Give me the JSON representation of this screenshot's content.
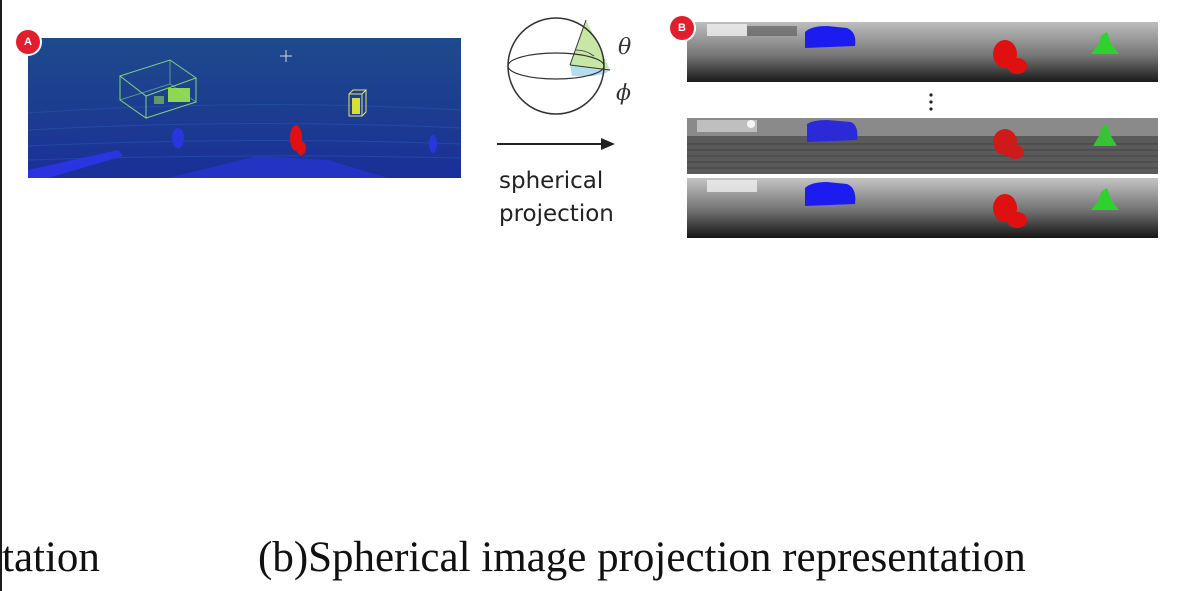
{
  "panel_a": {
    "badge": "A"
  },
  "panel_b": {
    "badge": "B"
  },
  "projection": {
    "theta_symbol": "θ",
    "phi_symbol": "ϕ",
    "label_line1": "spherical",
    "label_line2": "projection"
  },
  "captions": {
    "left_fragment": "tation",
    "right": "(b)Spherical image projection representation"
  },
  "colors": {
    "badge_red": "#e11d2e",
    "pointcloud_bg": "#1d3d8f",
    "car_blue": "#1c1cf0",
    "cyclist_red": "#e01010",
    "pedestrian_green": "#2fd12f",
    "theta_wedge": "#c7e7a4",
    "phi_wedge": "#b6dcf0"
  }
}
